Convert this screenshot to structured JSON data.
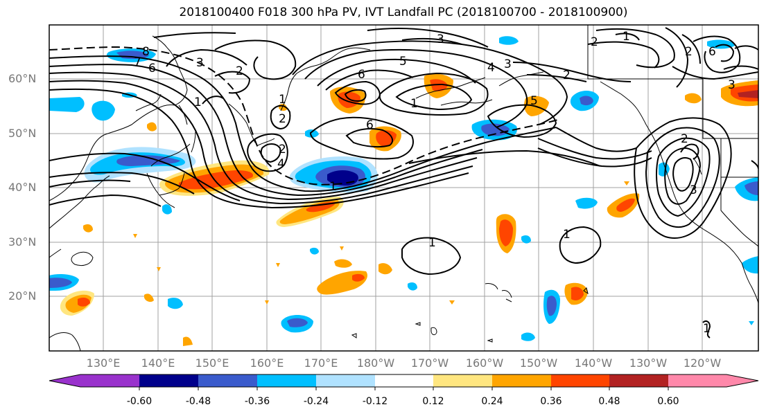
{
  "title": "2018100400 F018 300 hPa PV, IVT Landfall PC (2018100700 - 2018100900)",
  "map": {
    "lat_labels": [
      "60°N",
      "50°N",
      "40°N",
      "30°N",
      "20°N"
    ],
    "lon_labels": [
      "130°E",
      "140°E",
      "150°E",
      "160°E",
      "170°E",
      "180°W",
      "170°W",
      "160°W",
      "150°W",
      "140°W",
      "130°W",
      "120°W"
    ],
    "contour_labels": [
      "8",
      "7",
      "6",
      "3",
      "2",
      "1",
      "1",
      "2",
      "3",
      "6",
      "5",
      "4",
      "3",
      "2",
      "1",
      "2",
      "6",
      "5",
      "4",
      "2",
      "6",
      "2",
      "1",
      "1",
      "1",
      "3",
      "2",
      "1",
      "1",
      "3"
    ]
  },
  "colorbar": {
    "tick_labels": [
      "-0.60",
      "-0.48",
      "-0.36",
      "-0.24",
      "-0.12",
      "0.12",
      "0.24",
      "0.36",
      "0.48",
      "0.60"
    ],
    "colors": [
      "#9932cc",
      "#00008b",
      "#3a5bcc",
      "#00bfff",
      "#b0e2ff",
      "#ffffff",
      "#ffe680",
      "#ffa500",
      "#ff4500",
      "#b22222",
      "#ff88aa"
    ]
  }
}
